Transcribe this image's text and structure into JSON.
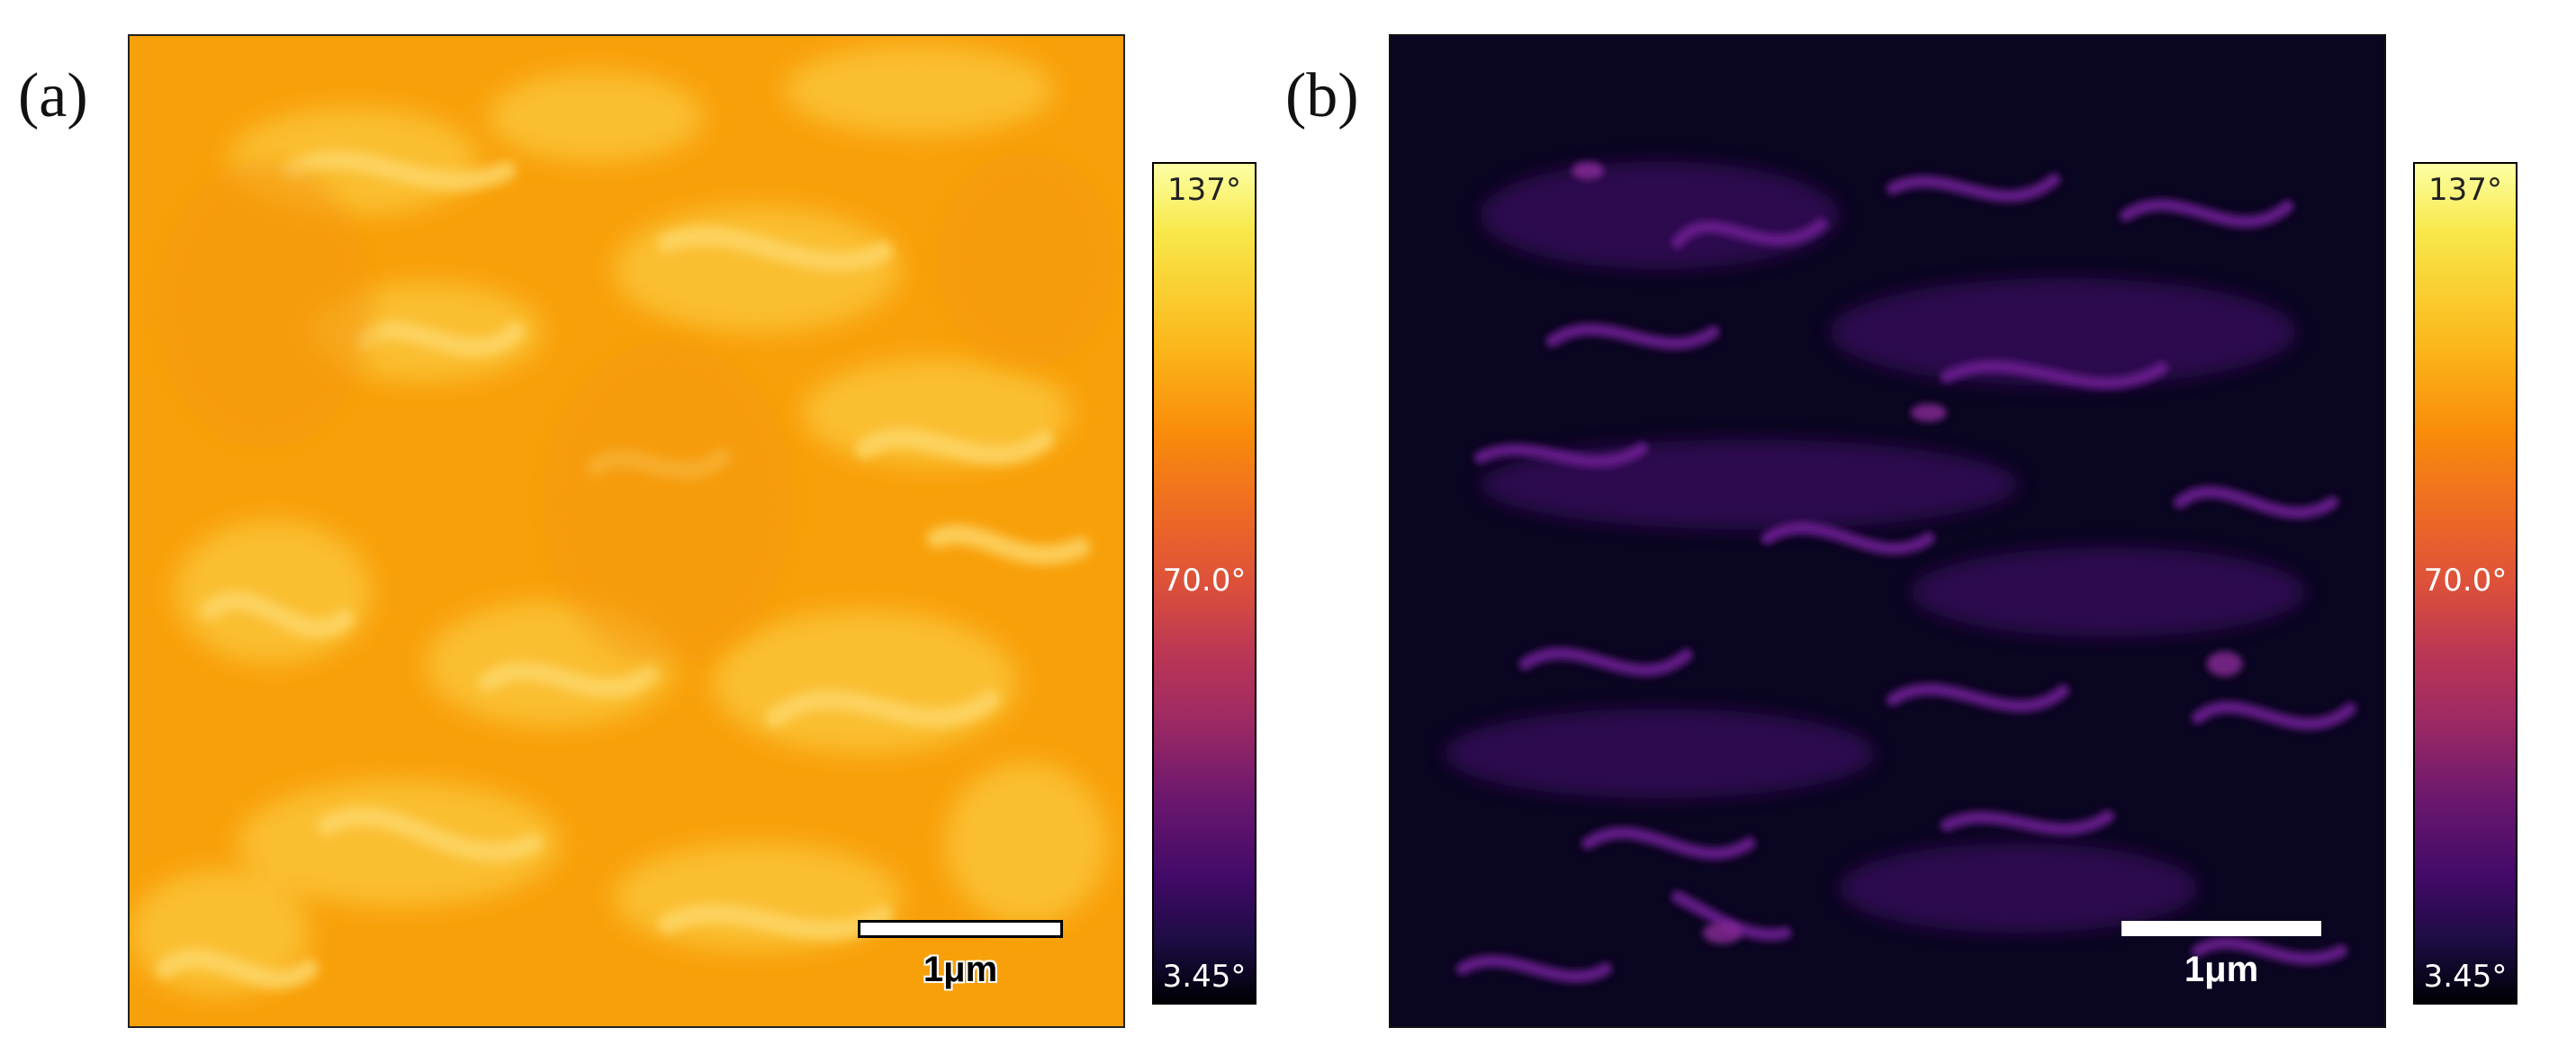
{
  "panels": [
    {
      "label": "(a)",
      "scale_bar": "1μm",
      "colorbar": {
        "max": "137°",
        "mid": "70.0°",
        "min": "3.45°"
      },
      "colors": {
        "base": "#f9a80c",
        "highlight": "#fdd15a"
      }
    },
    {
      "label": "(b)",
      "scale_bar": "1μm",
      "colorbar": {
        "max": "137°",
        "mid": "70.0°",
        "min": "3.45°"
      },
      "colors": {
        "base": "#0a0520",
        "highlight": "#6a1d8f"
      }
    }
  ]
}
